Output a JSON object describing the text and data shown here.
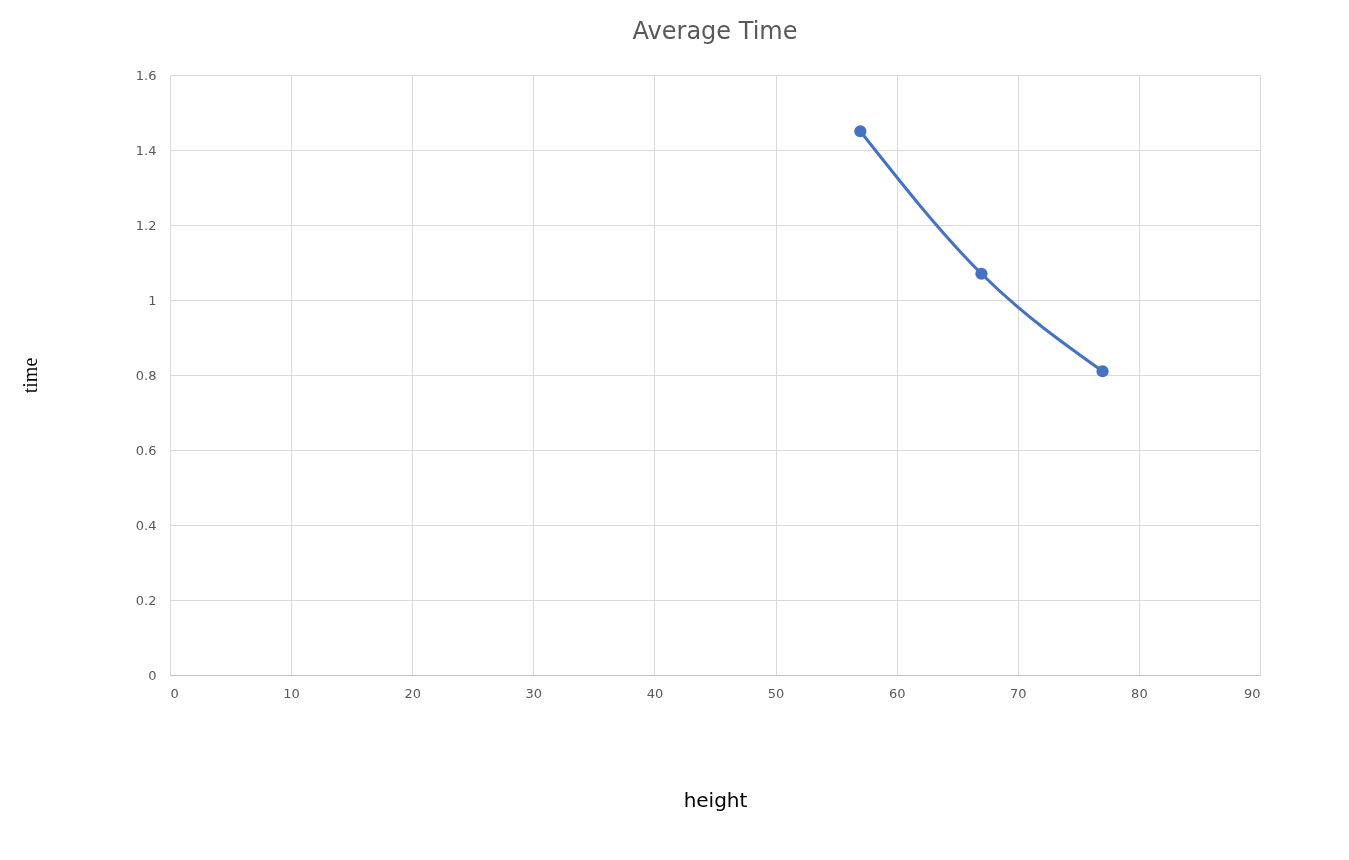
{
  "chart_data": {
    "type": "line",
    "title": "Average Time",
    "xlabel": "height",
    "ylabel": "time",
    "x": [
      57,
      67,
      77
    ],
    "series": [
      {
        "color": "#4472c4",
        "values": [
          1.45,
          1.07,
          0.81
        ]
      }
    ],
    "xlim": [
      0,
      90
    ],
    "xticks": [
      0,
      10,
      20,
      30,
      40,
      50,
      60,
      70,
      80,
      90
    ],
    "ylim": [
      0,
      1.6
    ],
    "yticks": [
      0,
      0.2,
      0.4,
      0.6,
      0.8,
      1,
      1.2,
      1.4,
      1.6
    ],
    "grid": true,
    "marker": "circle",
    "line_style": "solid"
  }
}
